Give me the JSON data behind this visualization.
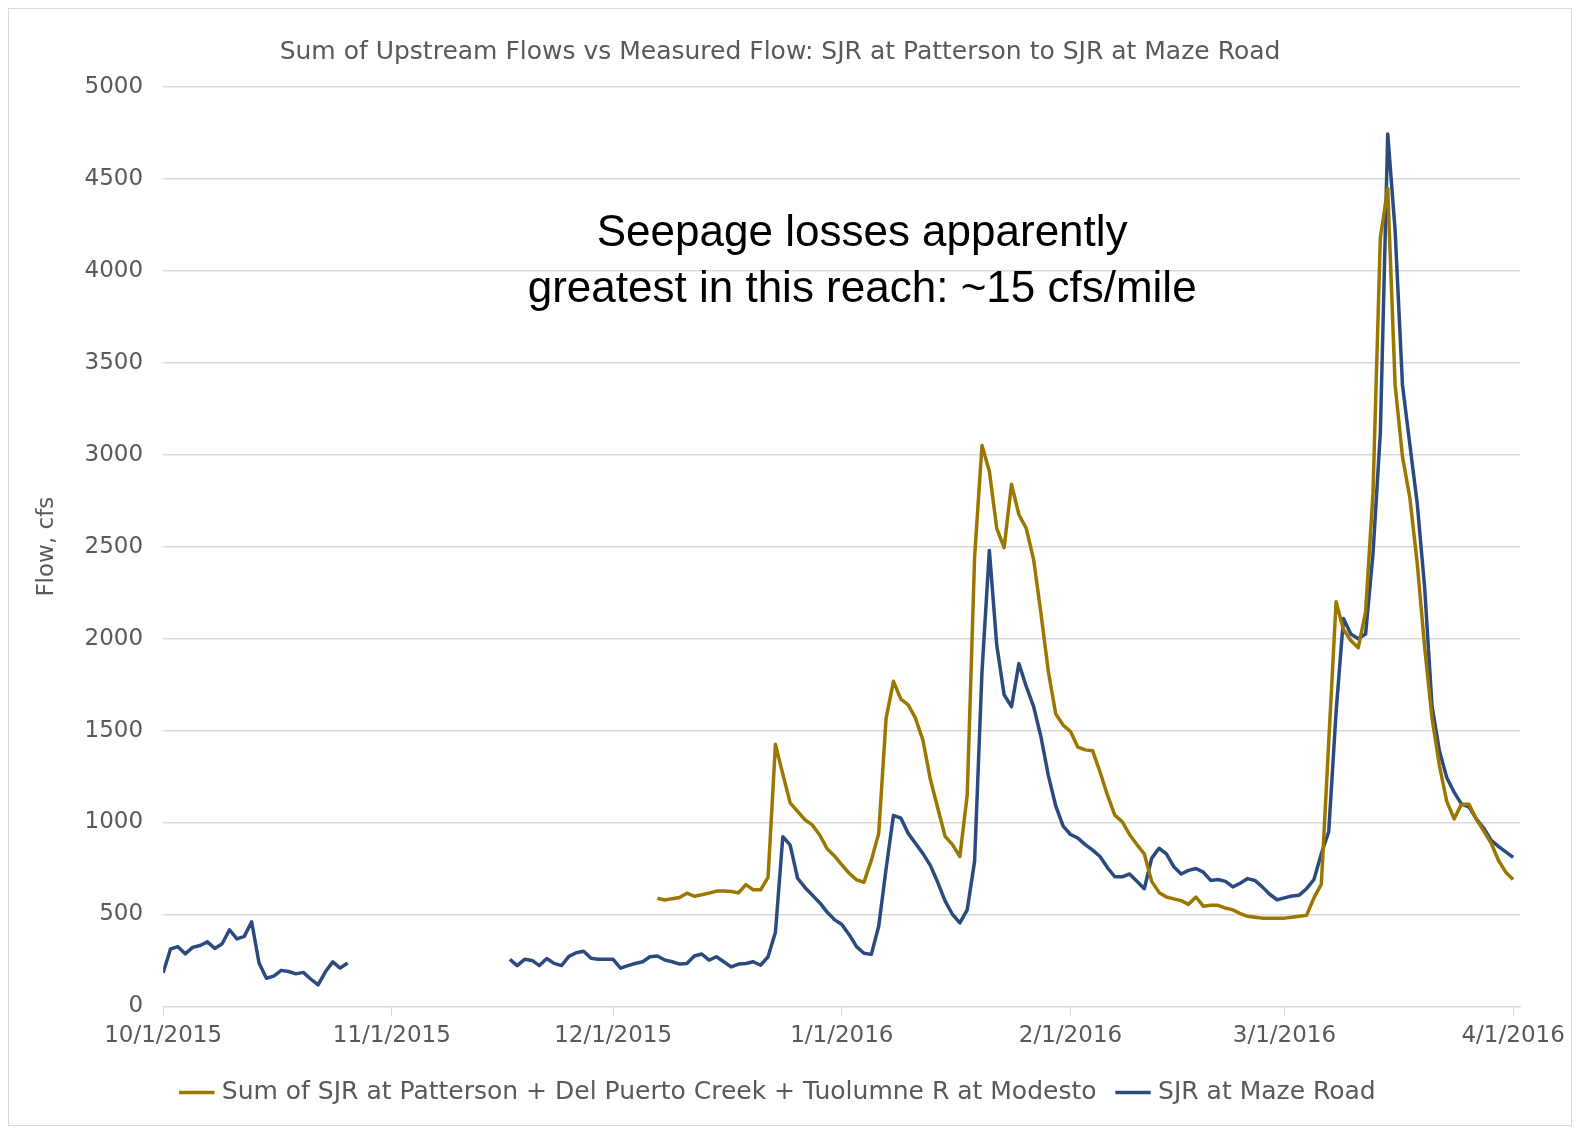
{
  "chart_data": {
    "type": "line",
    "title": "Sum of Upstream Flows vs Measured Flow: SJR at Patterson to SJR at Maze Road",
    "ylabel": "Flow, cfs",
    "xlim": [
      "2015-10-01",
      "2016-04-02"
    ],
    "xticks": [
      {
        "value": "2015-10-01",
        "label": "10/1/2015"
      },
      {
        "value": "2015-11-01",
        "label": "11/1/2015"
      },
      {
        "value": "2015-12-01",
        "label": "12/1/2015"
      },
      {
        "value": "2016-01-01",
        "label": "1/1/2016"
      },
      {
        "value": "2016-02-01",
        "label": "2/1/2016"
      },
      {
        "value": "2016-03-01",
        "label": "3/1/2016"
      },
      {
        "value": "2016-04-01",
        "label": "4/1/2016"
      }
    ],
    "ylim": [
      0,
      5000
    ],
    "yticks": [
      0,
      500,
      1000,
      1500,
      2000,
      2500,
      3000,
      3500,
      4000,
      4500,
      5000
    ],
    "grid": "y",
    "legend": "bottom",
    "annotations": [
      "Seepage losses apparently\ngreatest in this reach: ~15 cfs/mile"
    ],
    "series": [
      {
        "name": "Sum of SJR at Patterson + Del Puerto Creek + Tuolumne R at Modesto",
        "color": "#9c7700",
        "x": [
          "2015-12-07",
          "2015-12-08",
          "2015-12-09",
          "2015-12-10",
          "2015-12-11",
          "2015-12-12",
          "2015-12-13",
          "2015-12-14",
          "2015-12-15",
          "2015-12-16",
          "2015-12-17",
          "2015-12-18",
          "2015-12-19",
          "2015-12-20",
          "2015-12-21",
          "2015-12-22",
          "2015-12-23",
          "2015-12-24",
          "2015-12-25",
          "2015-12-26",
          "2015-12-27",
          "2015-12-28",
          "2015-12-29",
          "2015-12-30",
          "2015-12-31",
          "2016-01-01",
          "2016-01-02",
          "2016-01-03",
          "2016-01-04",
          "2016-01-05",
          "2016-01-06",
          "2016-01-07",
          "2016-01-08",
          "2016-01-09",
          "2016-01-10",
          "2016-01-11",
          "2016-01-12",
          "2016-01-13",
          "2016-01-14",
          "2016-01-15",
          "2016-01-16",
          "2016-01-17",
          "2016-01-18",
          "2016-01-19",
          "2016-01-20",
          "2016-01-21",
          "2016-01-22",
          "2016-01-23",
          "2016-01-24",
          "2016-01-25",
          "2016-01-26",
          "2016-01-27",
          "2016-01-28",
          "2016-01-29",
          "2016-01-30",
          "2016-01-31",
          "2016-02-01",
          "2016-02-02",
          "2016-02-03",
          "2016-02-04",
          "2016-02-05",
          "2016-02-06",
          "2016-02-07",
          "2016-02-08",
          "2016-02-09",
          "2016-02-10",
          "2016-02-11",
          "2016-02-12",
          "2016-02-13",
          "2016-02-14",
          "2016-02-15",
          "2016-02-16",
          "2016-02-17",
          "2016-02-18",
          "2016-02-19",
          "2016-02-20",
          "2016-02-21",
          "2016-02-22",
          "2016-02-23",
          "2016-02-24",
          "2016-02-25",
          "2016-02-26",
          "2016-02-27",
          "2016-02-28",
          "2016-02-29",
          "2016-03-01",
          "2016-03-02",
          "2016-03-03",
          "2016-03-04",
          "2016-03-05",
          "2016-03-06",
          "2016-03-07",
          "2016-03-08",
          "2016-03-09",
          "2016-03-10",
          "2016-03-11",
          "2016-03-12",
          "2016-03-13",
          "2016-03-14",
          "2016-03-15",
          "2016-03-16",
          "2016-03-17",
          "2016-03-18",
          "2016-03-19",
          "2016-03-20",
          "2016-03-21",
          "2016-03-22",
          "2016-03-23",
          "2016-03-24",
          "2016-03-25",
          "2016-03-26",
          "2016-03-27",
          "2016-03-28",
          "2016-03-29",
          "2016-03-30",
          "2016-03-31",
          "2016-04-01"
        ],
        "values": [
          588,
          579,
          586,
          592,
          616,
          599,
          607,
          616,
          627,
          627,
          625,
          618,
          662,
          634,
          634,
          702,
          1425,
          1263,
          1107,
          1061,
          1015,
          987,
          932,
          858,
          818,
          770,
          724,
          688,
          675,
          794,
          941,
          1566,
          1768,
          1671,
          1640,
          1566,
          1447,
          1235,
          1079,
          925,
          880,
          815,
          1150,
          2445,
          3050,
          2910,
          2600,
          2495,
          2840,
          2675,
          2600,
          2430,
          2135,
          1820,
          1590,
          1530,
          1495,
          1410,
          1395,
          1390,
          1275,
          1150,
          1040,
          1005,
          935,
          880,
          830,
          680,
          620,
          595,
          585,
          575,
          555,
          595,
          545,
          550,
          550,
          535,
          525,
          505,
          490,
          485,
          480,
          480,
          480,
          480,
          485,
          490,
          495,
          590,
          665,
          1435,
          2200,
          2050,
          1990,
          1950,
          2145,
          2790,
          4180,
          4450,
          3380,
          2990,
          2765,
          2410,
          1955,
          1570,
          1310,
          1115,
          1020,
          1100,
          1100,
          1020,
          955,
          890,
          795,
          730,
          690
        ]
      },
      {
        "name": "SJR at Maze Road",
        "color": "#2b4a80",
        "x": [
          "2015-10-01",
          "2015-10-02",
          "2015-10-03",
          "2015-10-04",
          "2015-10-05",
          "2015-10-06",
          "2015-10-07",
          "2015-10-08",
          "2015-10-09",
          "2015-10-10",
          "2015-10-11",
          "2015-10-12",
          "2015-10-13",
          "2015-10-14",
          "2015-10-15",
          "2015-10-16",
          "2015-10-17",
          "2015-10-18",
          "2015-10-19",
          "2015-10-20",
          "2015-10-21",
          "2015-10-22",
          "2015-10-23",
          "2015-10-24",
          "2015-10-25",
          "2015-10-26",
          "2015-11-06",
          "2015-11-17",
          "2015-11-18",
          "2015-11-19",
          "2015-11-20",
          "2015-11-21",
          "2015-11-22",
          "2015-11-23",
          "2015-11-24",
          "2015-11-25",
          "2015-11-26",
          "2015-11-27",
          "2015-11-28",
          "2015-11-29",
          "2015-11-30",
          "2015-12-01",
          "2015-12-02",
          "2015-12-03",
          "2015-12-04",
          "2015-12-05",
          "2015-12-06",
          "2015-12-07",
          "2015-12-08",
          "2015-12-09",
          "2015-12-10",
          "2015-12-11",
          "2015-12-12",
          "2015-12-13",
          "2015-12-14",
          "2015-12-15",
          "2015-12-16",
          "2015-12-17",
          "2015-12-18",
          "2015-12-19",
          "2015-12-20",
          "2015-12-21",
          "2015-12-22",
          "2015-12-23",
          "2015-12-24",
          "2015-12-25",
          "2015-12-26",
          "2015-12-27",
          "2015-12-28",
          "2015-12-29",
          "2015-12-30",
          "2015-12-31",
          "2016-01-01",
          "2016-01-02",
          "2016-01-03",
          "2016-01-04",
          "2016-01-05",
          "2016-01-06",
          "2016-01-07",
          "2016-01-08",
          "2016-01-09",
          "2016-01-10",
          "2016-01-11",
          "2016-01-12",
          "2016-01-13",
          "2016-01-14",
          "2016-01-15",
          "2016-01-16",
          "2016-01-17",
          "2016-01-18",
          "2016-01-19",
          "2016-01-20",
          "2016-01-21",
          "2016-01-22",
          "2016-01-23",
          "2016-01-24",
          "2016-01-25",
          "2016-01-26",
          "2016-01-27",
          "2016-01-28",
          "2016-01-29",
          "2016-01-30",
          "2016-01-31",
          "2016-02-01",
          "2016-02-02",
          "2016-02-03",
          "2016-02-04",
          "2016-02-05",
          "2016-02-06",
          "2016-02-07",
          "2016-02-08",
          "2016-02-09",
          "2016-02-10",
          "2016-02-11",
          "2016-02-12",
          "2016-02-13",
          "2016-02-14",
          "2016-02-15",
          "2016-02-16",
          "2016-02-17",
          "2016-02-18",
          "2016-02-19",
          "2016-02-20",
          "2016-02-21",
          "2016-02-22",
          "2016-02-23",
          "2016-02-24",
          "2016-02-25",
          "2016-02-26",
          "2016-02-27",
          "2016-02-28",
          "2016-02-29",
          "2016-03-01",
          "2016-03-02",
          "2016-03-03",
          "2016-03-04",
          "2016-03-05",
          "2016-03-06",
          "2016-03-07",
          "2016-03-08",
          "2016-03-09",
          "2016-03-10",
          "2016-03-11",
          "2016-03-12",
          "2016-03-13",
          "2016-03-14",
          "2016-03-15",
          "2016-03-16",
          "2016-03-17",
          "2016-03-18",
          "2016-03-19",
          "2016-03-20",
          "2016-03-21",
          "2016-03-22",
          "2016-03-23",
          "2016-03-24",
          "2016-03-25",
          "2016-03-26",
          "2016-03-27",
          "2016-03-28",
          "2016-03-29",
          "2016-03-30",
          "2016-03-31",
          "2016-04-01"
        ],
        "values": [
          183,
          312,
          325,
          286,
          321,
          331,
          351,
          315,
          341,
          417,
          367,
          381,
          460,
          236,
          153,
          165,
          196,
          190,
          177,
          185,
          149,
          117,
          188,
          242,
          208,
          236,
          null,
          256,
          222,
          256,
          250,
          222,
          260,
          234,
          222,
          272,
          292,
          300,
          262,
          256,
          256,
          256,
          208,
          222,
          233,
          243,
          270,
          274,
          252,
          243,
          230,
          233,
          274,
          285,
          252,
          270,
          243,
          215,
          230,
          233,
          243,
          224,
          270,
          403,
          923,
          877,
          697,
          647,
          605,
          564,
          513,
          472,
          445,
          390,
          325,
          289,
          283,
          436,
          748,
          1039,
          1024,
          941,
          886,
          831,
          767,
          675,
          574,
          500,
          454,
          525,
          790,
          1820,
          2480,
          1965,
          1695,
          1630,
          1865,
          1740,
          1630,
          1465,
          1255,
          1090,
          980,
          935,
          915,
          880,
          850,
          815,
          755,
          705,
          705,
          720,
          680,
          640,
          805,
          860,
          830,
          760,
          720,
          740,
          750,
          730,
          685,
          690,
          680,
          650,
          670,
          695,
          685,
          650,
          610,
          580,
          590,
          600,
          605,
          640,
          690,
          830,
          950,
          1600,
          2110,
          2025,
          2000,
          2025,
          2460,
          3120,
          4745,
          4220,
          3380,
          3055,
          2735,
          2280,
          1635,
          1390,
          1245,
          1165,
          1100,
          1085,
          1020,
          970,
          905,
          870,
          840,
          810
        ]
      }
    ]
  }
}
